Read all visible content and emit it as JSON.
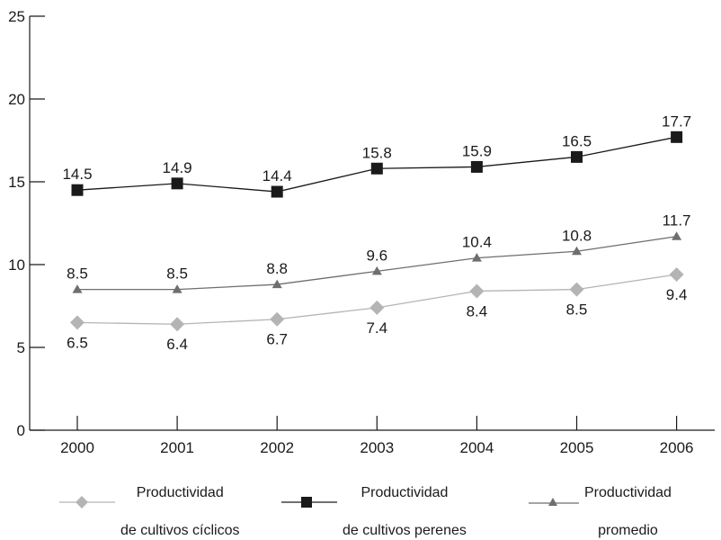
{
  "chart_data": {
    "type": "line",
    "categories": [
      "2000",
      "2001",
      "2002",
      "2003",
      "2004",
      "2005",
      "2006"
    ],
    "ylim": [
      0,
      25
    ],
    "yticks": [
      "0",
      "5",
      "10",
      "15",
      "20",
      "25"
    ],
    "grid": false,
    "legend_position": "bottom",
    "series": [
      {
        "name": "Productividad de cultivos perenes",
        "label_line1": "Productividad",
        "label_line2": "de cultivos perenes",
        "marker": "square",
        "color": "#1a1a1a",
        "values": [
          14.5,
          14.9,
          14.4,
          15.8,
          15.9,
          16.5,
          17.7
        ],
        "labels": [
          "14.5",
          "14.9",
          "14.4",
          "15.8",
          "15.9",
          "16.5",
          "17.7"
        ]
      },
      {
        "name": "Productividad promedio",
        "label_line1": "Productividad",
        "label_line2": "promedio",
        "marker": "triangle",
        "color": "#6e6e6e",
        "values": [
          8.5,
          8.5,
          8.8,
          9.6,
          10.4,
          10.8,
          11.7
        ],
        "labels": [
          "8.5",
          "8.5",
          "8.8",
          "9.6",
          "10.4",
          "10.8",
          "11.7"
        ]
      },
      {
        "name": "Productividad de cultivos cíclicos",
        "label_line1": "Productividad",
        "label_line2": "de cultivos cíclicos",
        "marker": "diamond",
        "color": "#b4b4b4",
        "values": [
          6.5,
          6.4,
          6.7,
          7.4,
          8.4,
          8.5,
          9.4
        ],
        "labels": [
          "6.5",
          "6.4",
          "6.7",
          "7.4",
          "8.4",
          "8.5",
          "9.4"
        ]
      }
    ]
  }
}
